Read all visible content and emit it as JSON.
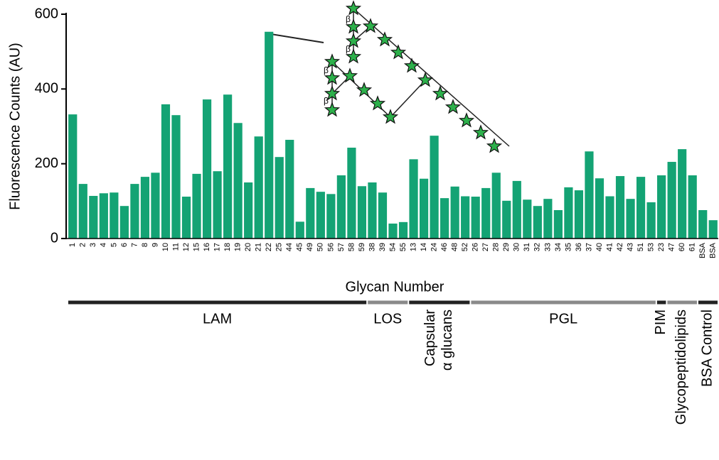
{
  "chart_data": {
    "type": "bar",
    "ylabel": "Fluorescence Counts (AU)",
    "xlabel": "Glycan Number",
    "color": "#14a374",
    "ylim": [
      0,
      600
    ],
    "yticks": [
      0,
      200,
      400,
      600
    ],
    "categories": [
      "1",
      "2",
      "3",
      "4",
      "5",
      "6",
      "7",
      "8",
      "9",
      "10",
      "11",
      "12",
      "15",
      "16",
      "17",
      "18",
      "19",
      "20",
      "21",
      "22",
      "25",
      "44",
      "45",
      "49",
      "50",
      "56",
      "57",
      "58",
      "59",
      "38",
      "39",
      "54",
      "55",
      "13",
      "14",
      "24",
      "46",
      "48",
      "52",
      "26",
      "27",
      "28",
      "29",
      "30",
      "31",
      "32",
      "33",
      "34",
      "35",
      "36",
      "37",
      "40",
      "41",
      "42",
      "43",
      "51",
      "53",
      "23",
      "47",
      "60",
      "61",
      "BSA",
      "BSA"
    ],
    "values": [
      332,
      146,
      114,
      121,
      123,
      87,
      146,
      165,
      176,
      359,
      330,
      112,
      173,
      372,
      180,
      385,
      309,
      150,
      273,
      553,
      218,
      264,
      45,
      135,
      125,
      119,
      169,
      243,
      140,
      150,
      123,
      40,
      44,
      212,
      160,
      275,
      108,
      139,
      113,
      112,
      135,
      176,
      101,
      154,
      104,
      87,
      106,
      76,
      137,
      129,
      233,
      161,
      113,
      167,
      106,
      165,
      97,
      169,
      205,
      239,
      169,
      76,
      49
    ],
    "groups": [
      {
        "label": "LAM",
        "color": "#222222",
        "span": 29
      },
      {
        "label": "LOS",
        "color": "#8a8a8a",
        "span": 4
      },
      {
        "label": "Capsular\nα glucans",
        "color": "#222222",
        "span": 6
      },
      {
        "label": "PGL",
        "color": "#8a8a8a",
        "span": 18
      },
      {
        "label": "PIM",
        "color": "#222222",
        "span": 1
      },
      {
        "label": "Glycopeptidolipids",
        "color": "#8a8a8a",
        "span": 3
      },
      {
        "label": "BSA Control",
        "color": "#222222",
        "span": 2
      }
    ],
    "structure_labels": [
      "β",
      "β",
      "β",
      "β"
    ]
  }
}
